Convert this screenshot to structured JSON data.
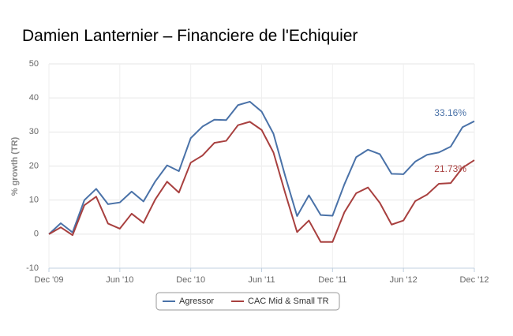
{
  "chart_data": {
    "type": "line",
    "title": "Damien Lanternier – Financiere de l'Echiquier",
    "ylabel": "% growth (TR)",
    "categories": [
      "Dec '09",
      null,
      null,
      null,
      null,
      null,
      "Jun '10",
      null,
      null,
      null,
      null,
      null,
      "Dec '10",
      null,
      null,
      null,
      null,
      null,
      "Jun '11",
      null,
      null,
      null,
      null,
      null,
      "Dec '11",
      null,
      null,
      null,
      null,
      null,
      "Jun '12",
      null,
      null,
      null,
      null,
      null,
      "Dec '12"
    ],
    "ylim": [
      -10,
      50
    ],
    "yticks": [
      -10,
      0,
      10,
      20,
      30,
      40,
      50
    ],
    "grid": true,
    "legend": "bottom",
    "series": [
      {
        "name": "Agressor",
        "color": "#4a72a8",
        "values": [
          0,
          3.2,
          0.5,
          10,
          13.3,
          8.8,
          9.3,
          12.5,
          9.6,
          15.5,
          20.2,
          18.5,
          28.2,
          31.6,
          33.6,
          33.5,
          37.9,
          38.9,
          36,
          29.5,
          17,
          5.3,
          11.4,
          5.6,
          5.4,
          14.6,
          22.6,
          24.8,
          23.5,
          17.7,
          17.6,
          21.3,
          23.3,
          24,
          25.7,
          31.4,
          33.16
        ],
        "value_labels": [
          null,
          null,
          null,
          null,
          null,
          null,
          null,
          null,
          null,
          null,
          null,
          null,
          null,
          null,
          null,
          null,
          null,
          null,
          null,
          null,
          null,
          null,
          null,
          null,
          null,
          null,
          null,
          null,
          null,
          null,
          null,
          null,
          null,
          null,
          null,
          null,
          "33.16%"
        ]
      },
      {
        "name": "CAC Mid & Small TR",
        "color": "#a8403f",
        "values": [
          0,
          2.0,
          -0.3,
          8.5,
          11,
          3.1,
          1.6,
          6,
          3.3,
          10.2,
          15.4,
          12.2,
          21,
          23.1,
          26.8,
          27.4,
          32,
          33,
          30.6,
          24,
          12,
          0.6,
          4,
          -2.3,
          -2.3,
          6.4,
          12,
          13.7,
          9.2,
          2.8,
          4,
          9.7,
          11.6,
          14.8,
          15,
          19.5,
          21.73
        ],
        "value_labels": [
          null,
          null,
          null,
          null,
          null,
          null,
          null,
          null,
          null,
          null,
          null,
          null,
          null,
          null,
          null,
          null,
          null,
          null,
          null,
          null,
          null,
          null,
          null,
          null,
          null,
          null,
          null,
          null,
          null,
          null,
          null,
          null,
          null,
          null,
          null,
          null,
          "21.73%"
        ]
      }
    ]
  }
}
